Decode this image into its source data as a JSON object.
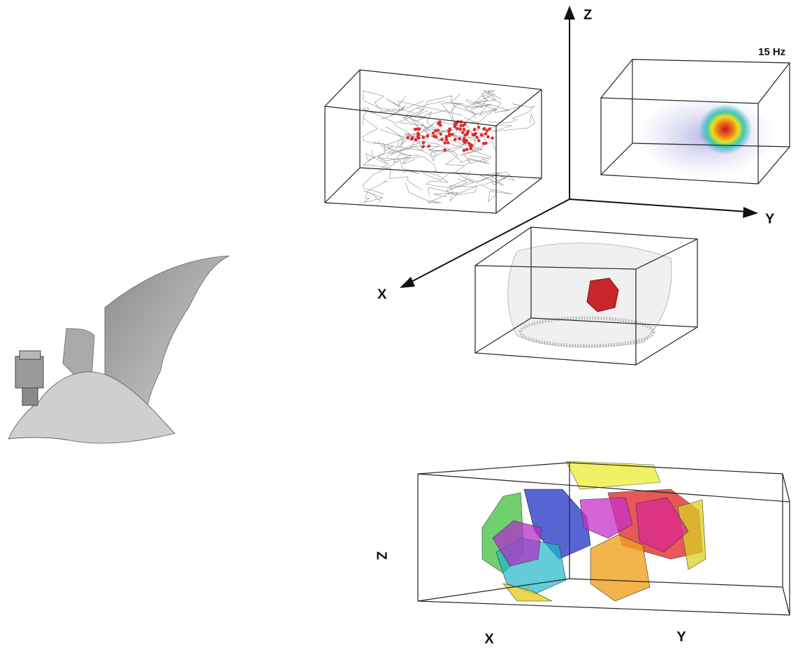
{
  "axes_diagram": {
    "z_label": "Z",
    "y_label": "Y",
    "x_label": "X",
    "rate_label": "15 Hz"
  },
  "fields_plot": {
    "z_label": "Z",
    "x_label": "X",
    "y_label": "Y"
  }
}
